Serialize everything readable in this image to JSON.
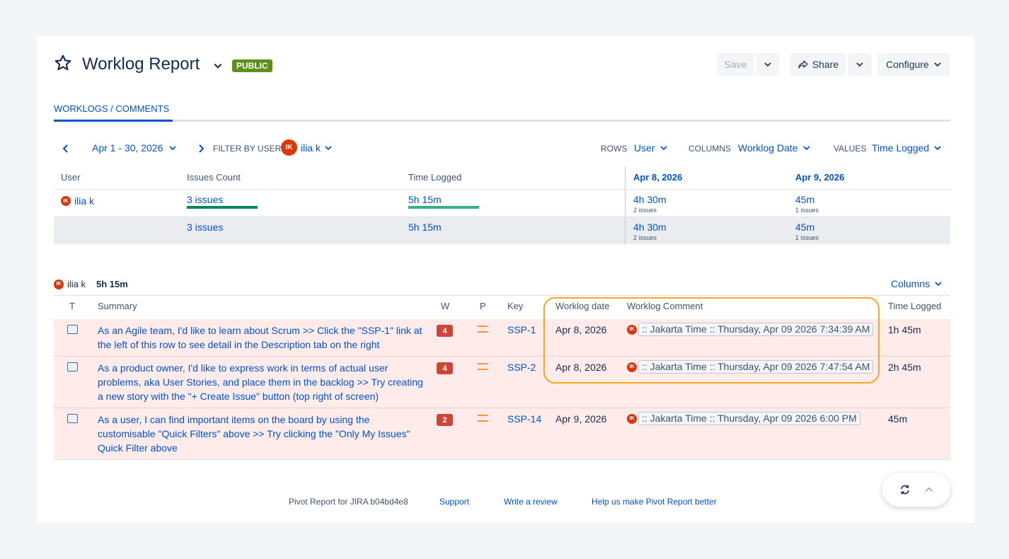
{
  "header": {
    "title": "Worklog Report",
    "badge": "PUBLIC",
    "save_label": "Save",
    "share_label": "Share",
    "configure_label": "Configure"
  },
  "tabs": [
    {
      "label": "WORKLOGS / COMMENTS",
      "active": true
    }
  ],
  "filters": {
    "date_range": "Apr 1 - 30, 2026",
    "filter_by_user_label": "FILTER BY USER",
    "user": "ilia k",
    "user_initials": "IK",
    "rows_label": "ROWS",
    "rows_value": "User",
    "columns_label": "COLUMNS",
    "columns_value": "Worklog Date",
    "values_label": "VALUES",
    "values_value": "Time Logged"
  },
  "pivot": {
    "headers": {
      "user": "User",
      "issues_count": "Issues Count",
      "time_logged": "Time Logged"
    },
    "dates": [
      "Apr 8, 2026",
      "Apr 9, 2026"
    ],
    "rows": [
      {
        "user": "ilia k",
        "issues": "3 issues",
        "time": "5h 15m",
        "cells": [
          {
            "time": "4h 30m",
            "issues": "2 issues"
          },
          {
            "time": "45m",
            "issues": "1 issues"
          }
        ]
      }
    ],
    "total": {
      "issues": "3 issues",
      "time": "5h 15m",
      "cells": [
        {
          "time": "4h 30m",
          "issues": "2 issues"
        },
        {
          "time": "45m",
          "issues": "1 issues"
        }
      ]
    }
  },
  "detail": {
    "user": "ilia k",
    "total": "5h 15m",
    "columns_button": "Columns",
    "headers": {
      "t": "T",
      "summary": "Summary",
      "w": "W",
      "p": "P",
      "key": "Key",
      "worklog_date": "Worklog date",
      "worklog_comment": "Worklog Comment",
      "time_logged": "Time Logged"
    },
    "rows": [
      {
        "summary": "As an Agile team, I'd like to learn about Scrum >> Click the \"SSP-1\" link at the left of this row to see detail in the Description tab on the right",
        "w": "4",
        "key": "SSP-1",
        "date": "Apr 8, 2026",
        "comment": ":: Jakarta Time :: Thursday, Apr 09 2026 7:34:39 AM",
        "time": "1h 45m"
      },
      {
        "summary": "As a product owner, I'd like to express work in terms of actual user problems, aka User Stories, and place them in the backlog >> Try creating a new story with the \"+ Create Issue\" button (top right of screen)",
        "w": "4",
        "key": "SSP-2",
        "date": "Apr 8, 2026",
        "comment": ":: Jakarta Time :: Thursday, Apr 09 2026 7:47:54 AM",
        "time": "2h 45m"
      },
      {
        "summary": "As a user, I can find important items on the board by using the customisable \"Quick Filters\" above >> Try clicking the \"Only My Issues\" Quick Filter above",
        "w": "2",
        "key": "SSP-14",
        "date": "Apr 9, 2026",
        "comment": ":: Jakarta Time :: Thursday, Apr 09 2026 6:00 PM",
        "time": "45m"
      }
    ]
  },
  "footer": {
    "version": "Pivot Report for JIRA b04bd4e8",
    "support": "Support",
    "review": "Write a review",
    "help": "Help us make Pivot Report better"
  },
  "colors": {
    "accent": "#0052cc",
    "badge_public": "#5e8e1c",
    "row_highlight": "#ffebe9",
    "w_badge": "#d04437",
    "annotation": "#f5a623"
  }
}
